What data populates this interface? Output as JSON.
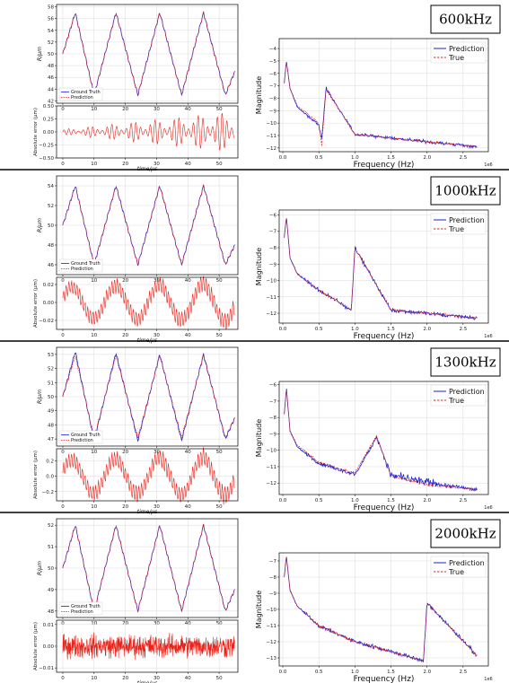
{
  "panels": [
    {
      "label": "600kHz",
      "top": {
        "ylabel": "R/μm",
        "xlim": [
          -2,
          56
        ],
        "ylim": [
          41.6,
          58.4
        ],
        "yticks": [
          42,
          44,
          46,
          48,
          50,
          52,
          54,
          56,
          58
        ],
        "xticks": [
          0,
          10,
          20,
          30,
          40,
          50
        ],
        "legend": [
          "Ground Truth",
          "Prediction"
        ]
      },
      "bottom": {
        "ylabel": "Absolute error (μm)",
        "xlabel": "time/μs",
        "xlim": [
          -2,
          56
        ],
        "ylim": [
          -0.5,
          0.5
        ],
        "yticks": [
          -0.5,
          -0.25,
          0.0,
          0.25,
          0.5
        ],
        "ytick_labels": [
          "−0.50",
          "−0.25",
          "0.00",
          "0.25",
          "0.50"
        ],
        "xticks": [
          0,
          10,
          20,
          30,
          40,
          50
        ]
      },
      "spectrum": {
        "xlabel": "Frequency (Hz)",
        "ylabel": "Magnitude",
        "exponent": "1e6",
        "xlim": [
          -0.05,
          2.85
        ],
        "ylim": [
          -12.3,
          -3.2
        ],
        "yticks": [
          -12,
          -11,
          -10,
          -9,
          -8,
          -7,
          -6,
          -5,
          -4
        ],
        "xticks": [
          0.0,
          0.5,
          1.0,
          1.5,
          2.0,
          2.5
        ],
        "legend": [
          "Prediction",
          "True"
        ],
        "peak": 0.6
      }
    },
    {
      "label": "1000kHz",
      "top": {
        "ylabel": "R/μm",
        "xlim": [
          -2,
          56
        ],
        "ylim": [
          45,
          55
        ],
        "yticks": [
          46,
          48,
          50,
          52,
          54
        ],
        "xticks": [
          0,
          10,
          20,
          30,
          40,
          50
        ],
        "legend": [
          "Ground Truth",
          "Prediction"
        ]
      },
      "bottom": {
        "ylabel": "Absolute error (μm)",
        "xlabel": "time/μs",
        "xlim": [
          -2,
          56
        ],
        "ylim": [
          -0.03,
          0.028
        ],
        "yticks": [
          -0.02,
          0.0,
          0.02
        ],
        "ytick_labels": [
          "−0.02",
          "0.00",
          "0.02"
        ],
        "xticks": [
          0,
          10,
          20,
          30,
          40,
          50
        ]
      },
      "spectrum": {
        "xlabel": "Frequency (Hz)",
        "ylabel": "Magnitude",
        "exponent": "1e6",
        "xlim": [
          -0.05,
          2.85
        ],
        "ylim": [
          -12.6,
          -5.7
        ],
        "yticks": [
          -12,
          -11,
          -10,
          -9,
          -8,
          -7,
          -6
        ],
        "xticks": [
          0.0,
          0.5,
          1.0,
          1.5,
          2.0,
          2.5
        ],
        "legend": [
          "Prediction",
          "True"
        ],
        "peak": 1.0
      }
    },
    {
      "label": "1300kHz",
      "top": {
        "ylabel": "R/μm",
        "xlim": [
          -2,
          56
        ],
        "ylim": [
          46.5,
          53.5
        ],
        "yticks": [
          47,
          48,
          49,
          50,
          51,
          52,
          53
        ],
        "xticks": [
          0,
          10,
          20,
          30,
          40,
          50
        ],
        "legend": [
          "Ground Truth",
          "Prediction"
        ]
      },
      "bottom": {
        "ylabel": "Absolute error (μm)",
        "xlabel": "time/μs",
        "xlim": [
          -2,
          56
        ],
        "ylim": [
          -0.32,
          0.36
        ],
        "yticks": [
          -0.2,
          0.0,
          0.2
        ],
        "ytick_labels": [
          "−0.2",
          "0.0",
          "0.2"
        ],
        "xticks": [
          0,
          10,
          20,
          30,
          40,
          50
        ]
      },
      "spectrum": {
        "xlabel": "Frequency (Hz)",
        "ylabel": "Magnitude",
        "exponent": "1e6",
        "xlim": [
          -0.05,
          2.85
        ],
        "ylim": [
          -12.7,
          -5.8
        ],
        "yticks": [
          -12,
          -11,
          -10,
          -9,
          -8,
          -7,
          -6
        ],
        "xticks": [
          0.0,
          0.5,
          1.0,
          1.5,
          2.0,
          2.5
        ],
        "legend": [
          "Prediction",
          "True"
        ],
        "peak": 1.3
      }
    },
    {
      "label": "2000kHz",
      "top": {
        "ylabel": "R/μm",
        "xlim": [
          -2,
          56
        ],
        "ylim": [
          47.7,
          52.3
        ],
        "yticks": [
          48,
          49,
          50,
          51,
          52
        ],
        "xticks": [
          0,
          10,
          20,
          30,
          40,
          50
        ],
        "legend": [
          "Ground Truth",
          "Prediction"
        ]
      },
      "bottom": {
        "ylabel": "Absolute error (μm)",
        "xlabel": "time/μs",
        "xlim": [
          -2,
          56
        ],
        "ylim": [
          -0.012,
          0.012
        ],
        "yticks": [
          -0.01,
          0.0,
          0.01
        ],
        "ytick_labels": [
          "−0.01",
          "0.00",
          "0.01"
        ],
        "xticks": [
          0,
          10,
          20,
          30,
          40,
          50
        ]
      },
      "spectrum": {
        "xlabel": "Frequency (Hz)",
        "ylabel": "Magnitude",
        "exponent": "1e6",
        "xlim": [
          -0.05,
          2.85
        ],
        "ylim": [
          -13.5,
          -6.5
        ],
        "yticks": [
          -13,
          -12,
          -11,
          -10,
          -9,
          -8,
          -7
        ],
        "xticks": [
          0.0,
          0.5,
          1.0,
          1.5,
          2.0,
          2.5
        ],
        "legend": [
          "Prediction",
          "True"
        ],
        "peak": 2.0
      }
    }
  ],
  "colors": {
    "ground_truth": "#1f1fd6",
    "prediction": "#e8231a",
    "grid": "#d9d9d9",
    "frame": "#000000"
  },
  "chart_data": [
    {
      "type": "line",
      "subplot": "600kHz time series",
      "xlabel": "time/μs",
      "ylabel": "R/μm",
      "xlim": [
        -2,
        56
      ],
      "ylim": [
        41.6,
        58.4
      ],
      "x": [
        0,
        4,
        10,
        17,
        24,
        31,
        38,
        45,
        52,
        55
      ],
      "series": [
        {
          "name": "Ground Truth",
          "values": [
            50,
            57,
            43,
            57,
            43,
            57,
            43,
            57,
            43,
            47
          ]
        },
        {
          "name": "Prediction",
          "values": [
            50,
            57,
            43,
            57,
            43,
            57,
            43,
            57,
            43,
            47
          ]
        }
      ]
    },
    {
      "type": "line",
      "subplot": "600kHz absolute error",
      "xlabel": "time/μs",
      "ylabel": "Absolute error (μm)",
      "xlim": [
        -2,
        56
      ],
      "ylim": [
        -0.5,
        0.5
      ],
      "series": [
        {
          "name": "",
          "envelope_x": [
            0,
            55
          ],
          "envelope": [
            0.05,
            0.4
          ]
        }
      ]
    },
    {
      "type": "line",
      "subplot": "600kHz spectrum",
      "xlabel": "Frequency (Hz)",
      "ylabel": "Magnitude",
      "xlim": [
        -0.05,
        2.85
      ],
      "ylim": [
        -12.3,
        -3.2
      ],
      "x": [
        0.02,
        0.05,
        0.1,
        0.2,
        0.5,
        0.54,
        0.6,
        1.0,
        1.5,
        2.0,
        2.7
      ],
      "series": [
        {
          "name": "Prediction",
          "values": [
            -6.8,
            -5.0,
            -7.2,
            -8.7,
            -10.2,
            -11.2,
            -7.2,
            -10.9,
            -11.2,
            -11.5,
            -11.9
          ]
        },
        {
          "name": "True",
          "values": [
            -6.8,
            -5.0,
            -7.2,
            -8.6,
            -10.0,
            -11.8,
            -7.3,
            -10.9,
            -11.2,
            -11.5,
            -11.9
          ]
        }
      ]
    },
    {
      "type": "line",
      "subplot": "1000kHz time series",
      "xlabel": "time/μs",
      "ylabel": "R/μm",
      "xlim": [
        -2,
        56
      ],
      "ylim": [
        45,
        55
      ],
      "x": [
        0,
        4,
        10,
        17,
        24,
        31,
        38,
        45,
        52,
        55
      ],
      "series": [
        {
          "name": "Ground Truth",
          "values": [
            50,
            54,
            46,
            54,
            46,
            54,
            46,
            54,
            46,
            48
          ]
        },
        {
          "name": "Prediction",
          "values": [
            50,
            54,
            46,
            54,
            46,
            54,
            46,
            54,
            46,
            48
          ]
        }
      ]
    },
    {
      "type": "line",
      "subplot": "1000kHz absolute error",
      "xlabel": "time/μs",
      "ylabel": "Absolute error (μm)",
      "xlim": [
        -2,
        56
      ],
      "ylim": [
        -0.03,
        0.028
      ],
      "series": [
        {
          "name": "",
          "envelope_x": [
            0,
            55
          ],
          "envelope": [
            0.02,
            0.025
          ]
        }
      ]
    },
    {
      "type": "line",
      "subplot": "1000kHz spectrum",
      "xlabel": "Frequency (Hz)",
      "ylabel": "Magnitude",
      "xlim": [
        -0.05,
        2.85
      ],
      "ylim": [
        -12.6,
        -5.7
      ],
      "x": [
        0.02,
        0.05,
        0.1,
        0.2,
        0.5,
        0.95,
        1.0,
        1.5,
        2.0,
        2.7
      ],
      "series": [
        {
          "name": "Prediction",
          "values": [
            -7.4,
            -6.1,
            -8.6,
            -9.6,
            -10.6,
            -11.8,
            -8.0,
            -11.8,
            -12.0,
            -12.3
          ]
        },
        {
          "name": "True",
          "values": [
            -7.4,
            -6.1,
            -8.6,
            -9.6,
            -10.6,
            -11.8,
            -8.0,
            -11.8,
            -12.0,
            -12.3
          ]
        }
      ]
    },
    {
      "type": "line",
      "subplot": "1300kHz time series",
      "xlabel": "time/μs",
      "ylabel": "R/μm",
      "xlim": [
        -2,
        56
      ],
      "ylim": [
        46.5,
        53.5
      ],
      "x": [
        0,
        4,
        10,
        17,
        24,
        31,
        38,
        45,
        52,
        55
      ],
      "series": [
        {
          "name": "Ground Truth",
          "values": [
            50,
            53.2,
            46.9,
            53.1,
            46.9,
            53.0,
            46.9,
            53.0,
            47.0,
            48.5
          ]
        },
        {
          "name": "Prediction",
          "values": [
            50,
            52.9,
            47.1,
            52.9,
            47.1,
            52.9,
            47.1,
            52.9,
            47.1,
            48.5
          ]
        }
      ]
    },
    {
      "type": "line",
      "subplot": "1300kHz absolute error",
      "xlabel": "time/μs",
      "ylabel": "Absolute error (μm)",
      "xlim": [
        -2,
        56
      ],
      "ylim": [
        -0.32,
        0.36
      ],
      "series": [
        {
          "name": "",
          "envelope_x": [
            0,
            55
          ],
          "envelope": [
            0.25,
            0.3
          ]
        }
      ]
    },
    {
      "type": "line",
      "subplot": "1300kHz spectrum",
      "xlabel": "Frequency (Hz)",
      "ylabel": "Magnitude",
      "xlim": [
        -0.05,
        2.85
      ],
      "ylim": [
        -12.7,
        -5.8
      ],
      "x": [
        0.02,
        0.05,
        0.1,
        0.2,
        0.5,
        1.0,
        1.3,
        1.5,
        2.0,
        2.7
      ],
      "series": [
        {
          "name": "Prediction",
          "values": [
            -7.8,
            -6.2,
            -8.8,
            -9.8,
            -10.8,
            -11.5,
            -9.2,
            -11.5,
            -12.0,
            -12.4
          ]
        },
        {
          "name": "True",
          "values": [
            -7.8,
            -6.2,
            -8.8,
            -9.7,
            -10.7,
            -11.4,
            -9.1,
            -11.6,
            -12.1,
            -12.4
          ]
        }
      ]
    },
    {
      "type": "line",
      "subplot": "2000kHz time series",
      "xlabel": "time/μs",
      "ylabel": "R/μm",
      "xlim": [
        -2,
        56
      ],
      "ylim": [
        47.7,
        52.3
      ],
      "x": [
        0,
        4,
        10,
        17,
        24,
        31,
        38,
        45,
        52,
        55
      ],
      "series": [
        {
          "name": "Ground Truth",
          "values": [
            50,
            52,
            48,
            52,
            48,
            52,
            48,
            52,
            48,
            49
          ]
        },
        {
          "name": "Prediction",
          "values": [
            50,
            52,
            48,
            52,
            48,
            52,
            48,
            52,
            48,
            49
          ]
        }
      ]
    },
    {
      "type": "line",
      "subplot": "2000kHz absolute error",
      "xlabel": "time/μs",
      "ylabel": "Absolute error (μm)",
      "xlim": [
        -2,
        56
      ],
      "ylim": [
        -0.012,
        0.012
      ],
      "series": [
        {
          "name": "",
          "envelope_x": [
            0,
            55
          ],
          "envelope": [
            0.007,
            0.007
          ]
        }
      ]
    },
    {
      "type": "line",
      "subplot": "2000kHz spectrum",
      "xlabel": "Frequency (Hz)",
      "ylabel": "Magnitude",
      "xlim": [
        -0.05,
        2.85
      ],
      "ylim": [
        -13.5,
        -6.5
      ],
      "x": [
        0.02,
        0.05,
        0.1,
        0.2,
        0.5,
        1.0,
        1.5,
        1.95,
        2.0,
        2.7
      ],
      "series": [
        {
          "name": "Prediction",
          "values": [
            -8.0,
            -6.7,
            -8.8,
            -9.8,
            -11.0,
            -12.0,
            -12.6,
            -13.2,
            -9.6,
            -12.9
          ]
        },
        {
          "name": "True",
          "values": [
            -8.0,
            -6.7,
            -8.8,
            -9.8,
            -11.0,
            -12.0,
            -12.6,
            -13.2,
            -9.6,
            -12.9
          ]
        }
      ]
    }
  ]
}
